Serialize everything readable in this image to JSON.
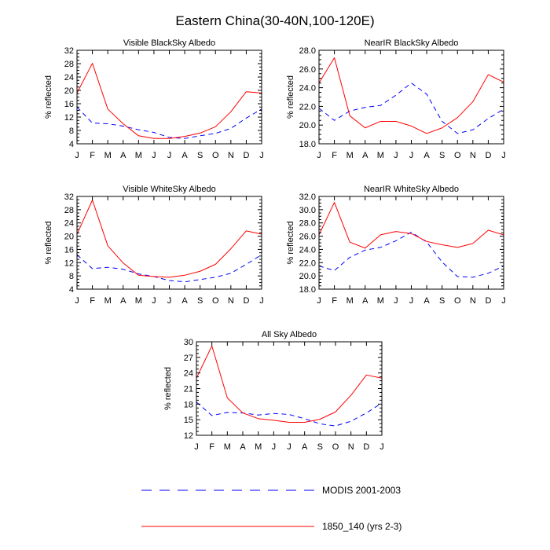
{
  "figure": {
    "title": "Eastern China(30-40N,100-120E)"
  },
  "legend": {
    "items": [
      {
        "label": "MODIS 2001-2003",
        "color": "#0000ff",
        "dash": "dashed"
      },
      {
        "label": "1850_140 (yrs 2-3)",
        "color": "#ff0000",
        "dash": "solid"
      }
    ]
  },
  "chart_data": [
    {
      "type": "line",
      "title": "Visible BlackSky Albedo",
      "ylabel": "% reflected",
      "categories": [
        "J",
        "F",
        "M",
        "A",
        "M",
        "J",
        "J",
        "A",
        "S",
        "O",
        "N",
        "D",
        "J"
      ],
      "ylim": [
        4,
        32
      ],
      "yticks": [
        4,
        8,
        12,
        16,
        20,
        24,
        28,
        32
      ],
      "yticklabels": [
        "4",
        "8",
        "12",
        "16",
        "20",
        "24",
        "28",
        "32"
      ],
      "series": [
        {
          "name": "MODIS 2001-2003",
          "values": [
            15.0,
            10.2,
            10.0,
            9.3,
            8.2,
            7.4,
            5.9,
            5.6,
            6.4,
            7.1,
            8.6,
            11.7,
            14.4
          ]
        },
        {
          "name": "1850_140 (yrs 2-3)",
          "values": [
            19.2,
            28.1,
            14.4,
            10.0,
            6.4,
            5.6,
            5.6,
            6.2,
            7.2,
            9.1,
            13.6,
            19.6,
            19.2
          ]
        }
      ]
    },
    {
      "type": "line",
      "title": "NearIR BlackSky Albedo",
      "ylabel": "% reflected",
      "categories": [
        "J",
        "F",
        "M",
        "A",
        "M",
        "J",
        "J",
        "A",
        "S",
        "O",
        "N",
        "D",
        "J"
      ],
      "ylim": [
        18,
        28
      ],
      "yticks": [
        18,
        20,
        22,
        24,
        26,
        28
      ],
      "yticklabels": [
        "18.0",
        "20.0",
        "22.0",
        "24.0",
        "26.0",
        "28.0"
      ],
      "series": [
        {
          "name": "MODIS 2001-2003",
          "values": [
            21.8,
            20.5,
            21.5,
            21.9,
            22.1,
            23.2,
            24.5,
            23.3,
            20.4,
            19.1,
            19.5,
            20.7,
            21.7
          ]
        },
        {
          "name": "1850_140 (yrs 2-3)",
          "values": [
            24.5,
            27.2,
            21.0,
            19.7,
            20.4,
            20.4,
            19.9,
            19.1,
            19.7,
            20.8,
            22.5,
            25.4,
            24.6
          ]
        }
      ]
    },
    {
      "type": "line",
      "title": "Visible WhiteSky Albedo",
      "ylabel": "% reflected",
      "categories": [
        "J",
        "F",
        "M",
        "A",
        "M",
        "J",
        "J",
        "A",
        "S",
        "O",
        "N",
        "D",
        "J"
      ],
      "ylim": [
        4,
        32
      ],
      "yticks": [
        4,
        8,
        12,
        16,
        20,
        24,
        28,
        32
      ],
      "yticklabels": [
        "4",
        "8",
        "12",
        "16",
        "20",
        "24",
        "28",
        "32"
      ],
      "series": [
        {
          "name": "MODIS 2001-2003",
          "values": [
            14.4,
            10.2,
            10.6,
            10.0,
            8.6,
            7.8,
            6.6,
            6.2,
            6.9,
            7.6,
            8.8,
            11.5,
            14.4
          ]
        },
        {
          "name": "1850_140 (yrs 2-3)",
          "values": [
            20.6,
            30.9,
            17.1,
            11.9,
            8.2,
            7.8,
            7.6,
            8.2,
            9.4,
            11.5,
            16.2,
            21.6,
            20.6
          ]
        }
      ]
    },
    {
      "type": "line",
      "title": "NearIR WhiteSky Albedo",
      "ylabel": "% reflected",
      "categories": [
        "J",
        "F",
        "M",
        "A",
        "M",
        "J",
        "J",
        "A",
        "S",
        "O",
        "N",
        "D",
        "J"
      ],
      "ylim": [
        18,
        32
      ],
      "yticks": [
        18,
        20,
        22,
        24,
        26,
        28,
        30,
        32
      ],
      "yticklabels": [
        "18.0",
        "20.0",
        "22.0",
        "24.0",
        "26.0",
        "28.0",
        "30.0",
        "32.0"
      ],
      "series": [
        {
          "name": "MODIS 2001-2003",
          "values": [
            21.5,
            20.8,
            22.8,
            23.9,
            24.3,
            25.3,
            26.6,
            25.1,
            22.1,
            19.9,
            19.8,
            20.4,
            21.5
          ]
        },
        {
          "name": "1850_140 (yrs 2-3)",
          "values": [
            26.2,
            31.1,
            25.1,
            24.2,
            26.2,
            26.7,
            26.4,
            25.2,
            24.7,
            24.3,
            24.9,
            26.9,
            26.2
          ]
        }
      ]
    },
    {
      "type": "line",
      "title": "All Sky Albedo",
      "ylabel": "% reflected",
      "categories": [
        "J",
        "F",
        "M",
        "A",
        "M",
        "J",
        "J",
        "A",
        "S",
        "O",
        "N",
        "D",
        "J"
      ],
      "ylim": [
        12,
        30
      ],
      "yticks": [
        12,
        15,
        18,
        21,
        24,
        27,
        30
      ],
      "yticklabels": [
        "12",
        "15",
        "18",
        "21",
        "24",
        "27",
        "30"
      ],
      "series": [
        {
          "name": "MODIS 2001-2003",
          "values": [
            18.4,
            15.8,
            16.4,
            16.3,
            15.9,
            16.2,
            16.0,
            15.2,
            14.2,
            13.8,
            14.7,
            16.3,
            18.2
          ]
        },
        {
          "name": "1850_140 (yrs 2-3)",
          "values": [
            23.0,
            29.2,
            19.2,
            16.3,
            15.2,
            14.9,
            14.5,
            14.5,
            15.1,
            16.5,
            19.7,
            23.6,
            23.0
          ]
        }
      ]
    }
  ]
}
